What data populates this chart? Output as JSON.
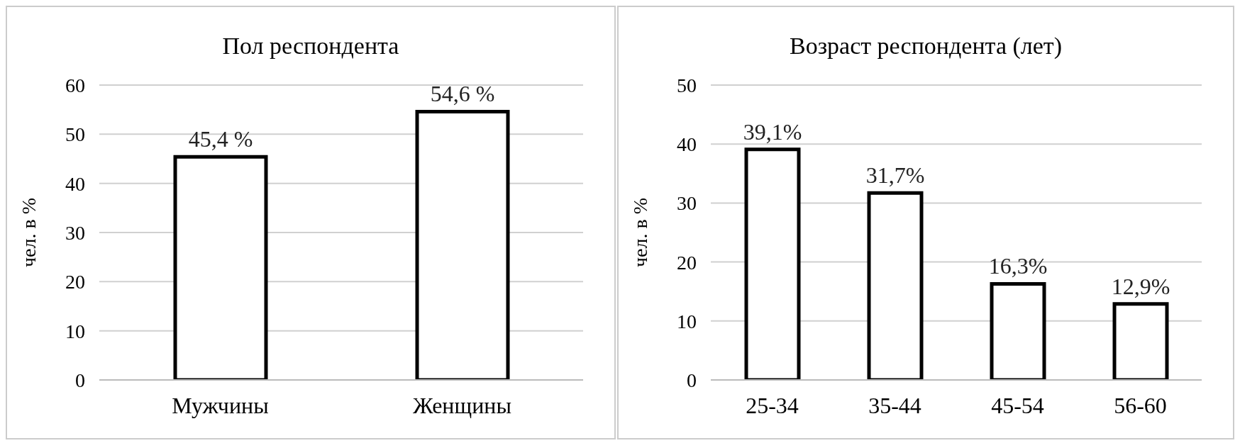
{
  "chart_data": [
    {
      "type": "bar",
      "title": "Пол респондента",
      "ylabel": "чел. в %",
      "categories": [
        "Мужчины",
        "Женщины"
      ],
      "values": [
        45.4,
        54.6
      ],
      "value_labels": [
        "45,4 %",
        "54,6 %"
      ],
      "color": "#ffffff",
      "ylim": [
        0,
        60
      ],
      "yticks": [
        0,
        10,
        20,
        30,
        40,
        50,
        60
      ],
      "grid": "y"
    },
    {
      "type": "bar",
      "title": "Возраст респондента (лет)",
      "ylabel": "чел. в %",
      "categories": [
        "25-34",
        "35-44",
        "45-54",
        "56-60"
      ],
      "values": [
        39.1,
        31.7,
        16.3,
        12.9
      ],
      "value_labels": [
        "39,1%",
        "31,7%",
        "16,3%",
        "12,9%"
      ],
      "color": "#ffffff",
      "ylim": [
        0,
        50
      ],
      "yticks": [
        0,
        10,
        20,
        30,
        40,
        50
      ],
      "grid": "y"
    }
  ]
}
